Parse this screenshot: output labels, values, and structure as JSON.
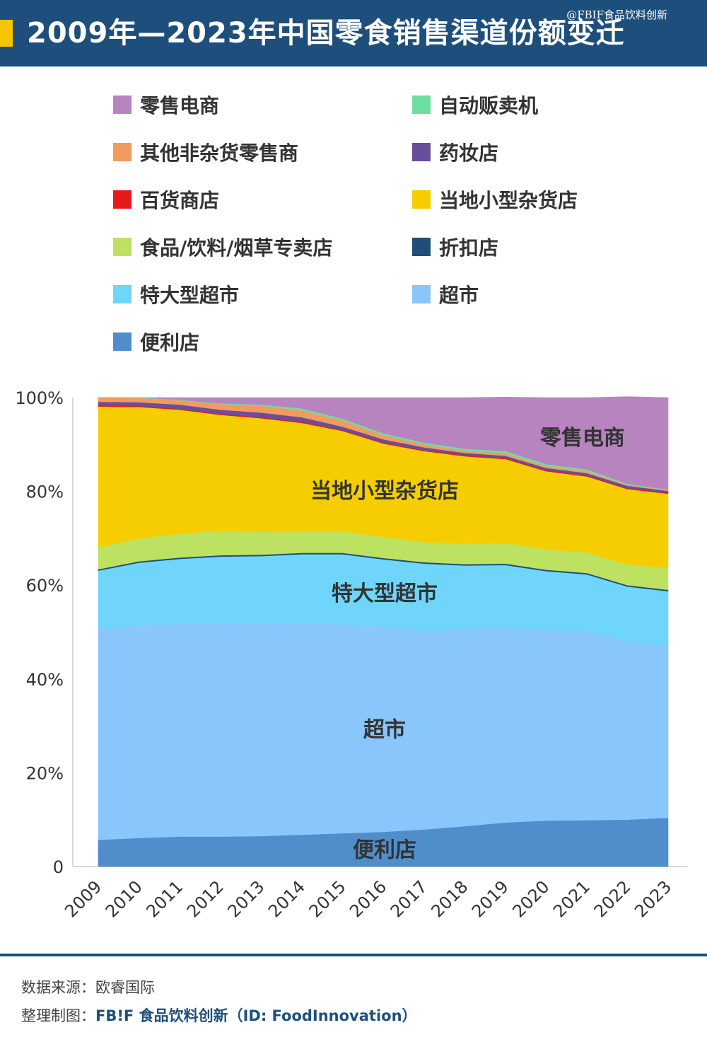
{
  "header": {
    "title": "2009年—2023年中国零食销售渠道份额变迁",
    "watermark": "@FBIF食品饮料创新"
  },
  "legend": [
    {
      "label": "零售电商",
      "color": "#b784c0"
    },
    {
      "label": "自动贩卖机",
      "color": "#6ddfa1"
    },
    {
      "label": "其他非杂货零售商",
      "color": "#f39a5e"
    },
    {
      "label": "药妆店",
      "color": "#6a4e9a"
    },
    {
      "label": "百货商店",
      "color": "#e8191c"
    },
    {
      "label": "当地小型杂货店",
      "color": "#f6ce00"
    },
    {
      "label": "食品/饮料/烟草专卖店",
      "color": "#bde160"
    },
    {
      "label": "折扣店",
      "color": "#1f4e79"
    },
    {
      "label": "特大型超市",
      "color": "#6fd5fb"
    },
    {
      "label": "超市",
      "color": "#88c6fc"
    },
    {
      "label": "便利店",
      "color": "#4f8ecb"
    }
  ],
  "chart_data": {
    "type": "area",
    "stacked": true,
    "x": [
      "2009",
      "2010",
      "2011",
      "2012",
      "2013",
      "2014",
      "2015",
      "2016",
      "2017",
      "2018",
      "2019",
      "2020",
      "2021",
      "2022",
      "2023"
    ],
    "yticks": [
      "0",
      "20%",
      "40%",
      "60%",
      "80%",
      "100%"
    ],
    "ylim": [
      0,
      100
    ],
    "series": [
      {
        "name": "便利店",
        "color": "#4f8ecb",
        "values": [
          5.7,
          6.1,
          6.4,
          6.4,
          6.5,
          6.8,
          7.1,
          7.4,
          7.9,
          8.6,
          9.4,
          9.8,
          9.9,
          10.0,
          10.4
        ]
      },
      {
        "name": "超市",
        "color": "#88c6fc",
        "values": [
          45.0,
          45.3,
          45.4,
          45.4,
          45.4,
          45.0,
          44.6,
          43.8,
          42.4,
          42.0,
          41.5,
          40.7,
          40.4,
          37.9,
          36.8
        ]
      },
      {
        "name": "特大型超市",
        "color": "#6fd5fb",
        "values": [
          12.4,
          13.4,
          13.8,
          14.3,
          14.3,
          14.8,
          14.9,
          14.3,
          14.3,
          13.6,
          13.4,
          12.5,
          12.0,
          11.8,
          11.5
        ]
      },
      {
        "name": "折扣店",
        "color": "#1f4e79",
        "values": [
          0.3,
          0.3,
          0.3,
          0.3,
          0.3,
          0.3,
          0.3,
          0.3,
          0.3,
          0.3,
          0.3,
          0.3,
          0.3,
          0.3,
          0.3
        ]
      },
      {
        "name": "食品/饮料/烟草专卖店",
        "color": "#bde160",
        "values": [
          4.7,
          4.9,
          5.1,
          5.2,
          4.9,
          4.6,
          4.6,
          4.5,
          4.3,
          4.4,
          4.4,
          4.4,
          4.4,
          4.4,
          4.7
        ]
      },
      {
        "name": "当地小型杂货店",
        "color": "#f6ce00",
        "values": [
          30.0,
          28.0,
          26.4,
          24.7,
          24.2,
          23.1,
          21.4,
          19.9,
          19.4,
          18.6,
          17.9,
          16.6,
          16.2,
          16.1,
          15.8
        ]
      },
      {
        "name": "百货商店",
        "color": "#e8191c",
        "values": [
          0.2,
          0.2,
          0.2,
          0.2,
          0.2,
          0.2,
          0.2,
          0.2,
          0.2,
          0.2,
          0.2,
          0.2,
          0.2,
          0.2,
          0.2
        ]
      },
      {
        "name": "药妆店",
        "color": "#6a4e9a",
        "values": [
          0.8,
          0.8,
          0.9,
          0.9,
          1.0,
          1.0,
          0.7,
          0.7,
          0.6,
          0.5,
          0.5,
          0.5,
          0.5,
          0.5,
          0.4
        ]
      },
      {
        "name": "其他非杂货零售商",
        "color": "#f39a5e",
        "values": [
          0.9,
          0.9,
          0.9,
          1.2,
          1.4,
          1.5,
          1.3,
          0.9,
          0.6,
          0.5,
          0.5,
          0.4,
          0.4,
          0.2,
          0.2
        ]
      },
      {
        "name": "自动贩卖机",
        "color": "#6ddfa1",
        "values": [
          0.0,
          0.1,
          0.1,
          0.2,
          0.3,
          0.4,
          0.4,
          0.4,
          0.4,
          0.4,
          0.5,
          0.4,
          0.4,
          0.2,
          0.1
        ]
      },
      {
        "name": "零售电商",
        "color": "#b784c0",
        "values": [
          0.0,
          0.0,
          0.5,
          1.2,
          1.5,
          2.3,
          4.5,
          7.6,
          9.6,
          10.9,
          11.5,
          14.2,
          15.3,
          18.6,
          19.6
        ]
      }
    ],
    "area_labels": [
      {
        "text": "零售电商",
        "series": "零售电商",
        "x": "2021"
      },
      {
        "text": "当地小型杂货店",
        "series": "当地小型杂货店",
        "x": "2016"
      },
      {
        "text": "特大型超市",
        "series": "特大型超市",
        "x": "2016"
      },
      {
        "text": "超市",
        "series": "超市",
        "x": "2016"
      },
      {
        "text": "便利店",
        "series": "便利店",
        "x": "2016"
      }
    ]
  },
  "footer": {
    "source": "数据来源：欧睿国际",
    "credit_prefix": "整理制图：",
    "credit_brand": "FB!F 食品饮料创新（ID: FoodInnovation）"
  }
}
